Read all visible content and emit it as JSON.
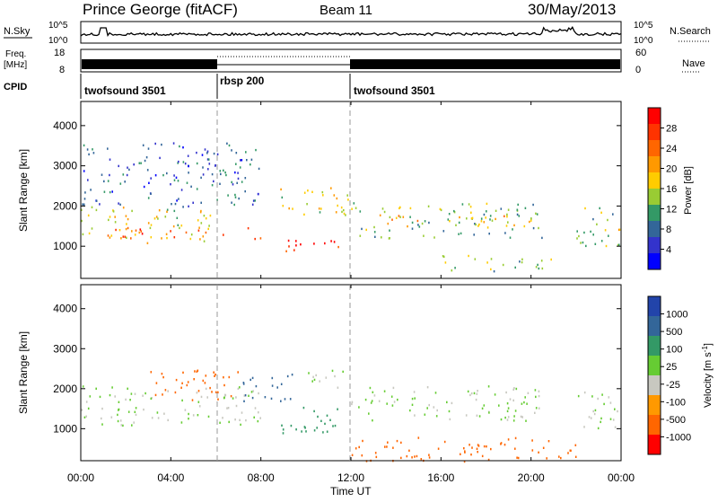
{
  "header": {
    "station": "Prince George (fitACF)",
    "beam": "Beam 11",
    "date": "30/May/2013"
  },
  "noise_panel": {
    "left_label": "N.Sky",
    "left_ticks": [
      "10^5",
      "10^0"
    ],
    "right_ticks": [
      "10^5",
      "10^0"
    ],
    "right_label": "N.Search"
  },
  "freq_panel": {
    "left_label_1": "Freq.",
    "left_label_2": "[MHz]",
    "left_ticks": [
      "18",
      "8"
    ],
    "right_ticks": [
      "60",
      "0"
    ],
    "right_label": "Nave"
  },
  "cpid": {
    "label": "CPID",
    "segments": [
      {
        "name": "twofsound 3501",
        "start_hr": 0,
        "end_hr": 6
      },
      {
        "name": "rbsp 200",
        "start_hr": 6,
        "end_hr": 12
      },
      {
        "name": "twofsound 3501",
        "start_hr": 12,
        "end_hr": 24
      }
    ]
  },
  "x_axis": {
    "label": "Time UT",
    "ticks": [
      "00:00",
      "04:00",
      "08:00",
      "12:00",
      "16:00",
      "20:00",
      "00:00"
    ],
    "range_hours": [
      0,
      24
    ]
  },
  "power_colorbar": {
    "label": "Power [dB]",
    "ticks": [
      "28",
      "24",
      "20",
      "16",
      "12",
      "8",
      "4"
    ],
    "colors": [
      "#ff0000",
      "#ff3300",
      "#ff6600",
      "#ff9900",
      "#ffcc00",
      "#99cc33",
      "#339966",
      "#336699",
      "#3333cc",
      "#0000ff"
    ]
  },
  "velocity_colorbar": {
    "label": "Velocity [m s",
    "label_sup": "-1",
    "label_end": "]",
    "ticks": [
      "1000",
      "500",
      "100",
      "25",
      "-25",
      "-100",
      "-500",
      "-1000"
    ],
    "colors": [
      "#2244aa",
      "#336699",
      "#339966",
      "#66cc33",
      "#c8c8c0",
      "#ff9900",
      "#ff6600",
      "#ff0000"
    ]
  },
  "chart_data": [
    {
      "type": "heatmap",
      "name": "Power",
      "ylabel": "Slant Range [km]",
      "yticks": [
        "1000",
        "2000",
        "3000",
        "4000"
      ],
      "ylim": [
        200,
        4600
      ],
      "bands": [
        {
          "t0": 0,
          "t1": 6,
          "r0": 1100,
          "r1": 2000,
          "level": 16
        },
        {
          "t0": 1,
          "t1": 8,
          "r0": 1200,
          "r1": 1500,
          "level": 24
        },
        {
          "t0": 8,
          "t1": 11.5,
          "r0": 900,
          "r1": 1200,
          "level": 28
        },
        {
          "t0": 8.5,
          "t1": 12,
          "r0": 1800,
          "r1": 2500,
          "level": 16
        },
        {
          "t0": 12,
          "t1": 20.5,
          "r0": 1200,
          "r1": 2100,
          "level": 12
        },
        {
          "t0": 13,
          "t1": 20,
          "r0": 1500,
          "r1": 1800,
          "level": 20
        },
        {
          "t0": 16,
          "t1": 21,
          "r0": 400,
          "r1": 800,
          "level": 12
        },
        {
          "t0": 22,
          "t1": 24,
          "r0": 1000,
          "r1": 2000,
          "level": 12
        },
        {
          "t0": 22.5,
          "t1": 24,
          "r0": 1300,
          "r1": 1500,
          "level": 20
        },
        {
          "t0": 0,
          "t1": 8,
          "r0": 2000,
          "r1": 3600,
          "level": 6
        }
      ]
    },
    {
      "type": "heatmap",
      "name": "Velocity",
      "ylabel": "Slant Range [km]",
      "yticks": [
        "1000",
        "2000",
        "3000",
        "4000"
      ],
      "ylim": [
        200,
        4600
      ],
      "bands": [
        {
          "t0": 0,
          "t1": 8,
          "r0": 1100,
          "r1": 2100,
          "v": 0
        },
        {
          "t0": 12,
          "t1": 20.5,
          "r0": 1200,
          "r1": 2100,
          "v": 0
        },
        {
          "t0": 22,
          "t1": 24,
          "r0": 1000,
          "r1": 2000,
          "v": 0
        },
        {
          "t0": 3,
          "t1": 7,
          "r0": 1700,
          "r1": 2500,
          "v": -200
        },
        {
          "t0": 8.5,
          "t1": 11.5,
          "r0": 900,
          "r1": 1600,
          "v": 60
        },
        {
          "t0": 7,
          "t1": 9.5,
          "r0": 1700,
          "r1": 2400,
          "v": 200
        },
        {
          "t0": 10,
          "t1": 12,
          "r0": 2000,
          "r1": 2500,
          "v": 0
        },
        {
          "t0": 12,
          "t1": 22,
          "r0": 200,
          "r1": 800,
          "v": -300
        }
      ]
    }
  ]
}
